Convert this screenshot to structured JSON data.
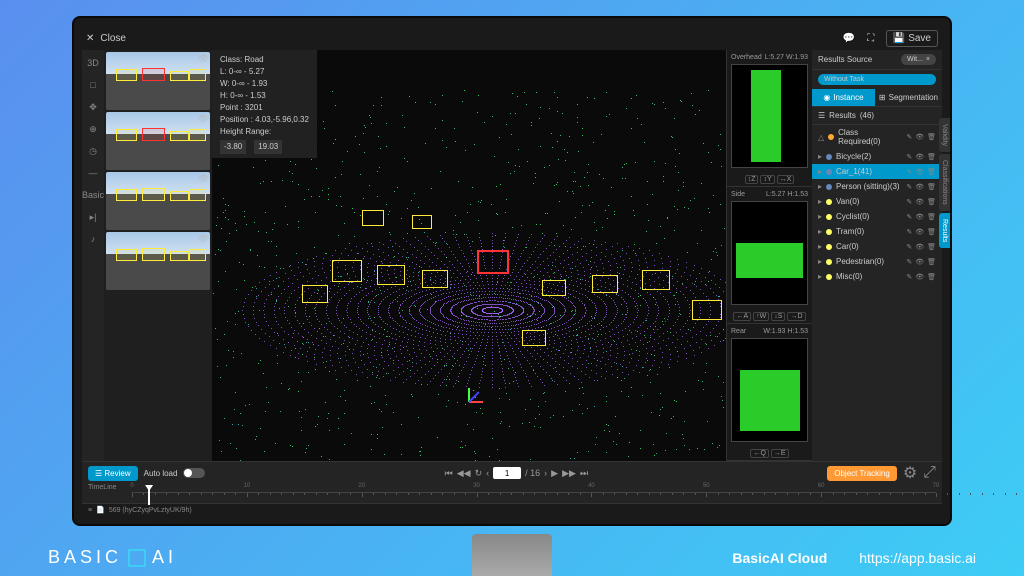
{
  "topbar": {
    "close": "Close",
    "save": "Save"
  },
  "info": {
    "class_label": "Class:",
    "class_value": "Road",
    "l": "L: 0-∞ - 5.27",
    "w": "W: 0-∞ - 1.93",
    "h": "H: 0-∞ - 1.53",
    "point": "Point : 3201",
    "position": "Position : 4.03,-5.96,0.32",
    "height_range": "Height Range:",
    "range_min": "-3.80",
    "range_max": "19.03"
  },
  "rail": [
    "3D",
    "□",
    "✥",
    "⊕",
    "◷",
    "—",
    "Basic",
    "▸|",
    "♪"
  ],
  "ortho": {
    "overhead": {
      "label": "Overhead",
      "dims": "L:5.27 W:1.93",
      "controls": [
        "↕Z",
        "↕Y",
        "↔X"
      ]
    },
    "side": {
      "label": "Side",
      "dims": "L:5.27 H:1.53",
      "controls": [
        "←A",
        "↑W",
        "↓S",
        "→D"
      ]
    },
    "rear": {
      "label": "Rear",
      "dims": "W:1.93 H:1.53",
      "controls": [
        "←Q",
        "→E"
      ]
    }
  },
  "right_panel": {
    "source_label": "Results Source",
    "source_value": "Wit...",
    "without_task": "Without Task",
    "tabs": {
      "instance": "Instance",
      "segmentation": "Segmentation"
    },
    "results_label": "Results",
    "results_count": "(46)",
    "items": [
      {
        "icon": "△",
        "color": "#ffaa33",
        "label": "Class Required",
        "count": "(0)",
        "warn": true
      },
      {
        "icon": "▸",
        "color": "#6688bb",
        "label": "Bicycle",
        "count": "(2)"
      },
      {
        "icon": "▸",
        "color": "#6688bb",
        "label": "Car_1",
        "count": "(41)",
        "selected": true
      },
      {
        "icon": "▸",
        "color": "#6688bb",
        "label": "Person (sitting)",
        "count": "(3)"
      },
      {
        "icon": "▸",
        "color": "#ffff66",
        "label": "Van",
        "count": "(0)"
      },
      {
        "icon": "▸",
        "color": "#ffff66",
        "label": "Cyclist",
        "count": "(0)"
      },
      {
        "icon": "▸",
        "color": "#ffff66",
        "label": "Tram",
        "count": "(0)"
      },
      {
        "icon": "▸",
        "color": "#ffff66",
        "label": "Car",
        "count": "(0)"
      },
      {
        "icon": "▸",
        "color": "#ffff66",
        "label": "Pedestrian",
        "count": "(0)"
      },
      {
        "icon": "▸",
        "color": "#ffff66",
        "label": "Misc",
        "count": "(0)"
      }
    ]
  },
  "side_tabs": [
    "Validity",
    "Classifications",
    "Results"
  ],
  "timeline": {
    "review": "Review",
    "auto_load": "Auto load",
    "object_tracking": "Object Tracking",
    "frame": "1",
    "total": "/ 16",
    "label": "TimeLine",
    "ticks": [
      "0",
      "10",
      "20",
      "30",
      "40",
      "50",
      "60",
      "70"
    ],
    "file_info": "569 (hyCZyqPvLztyUK/9h)"
  },
  "colors": {
    "pc_green": "#44ff88",
    "pc_purple": "#aa66ff",
    "pc_cyan": "#33dddd",
    "cuboid": "#ffeb3b",
    "selected": "#ff3333",
    "ortho_green": "#33ff33"
  },
  "footer": {
    "brand": "BASIC",
    "brand2": "AI",
    "product": "BasicAI Cloud",
    "url": "https://app.basic.ai"
  }
}
